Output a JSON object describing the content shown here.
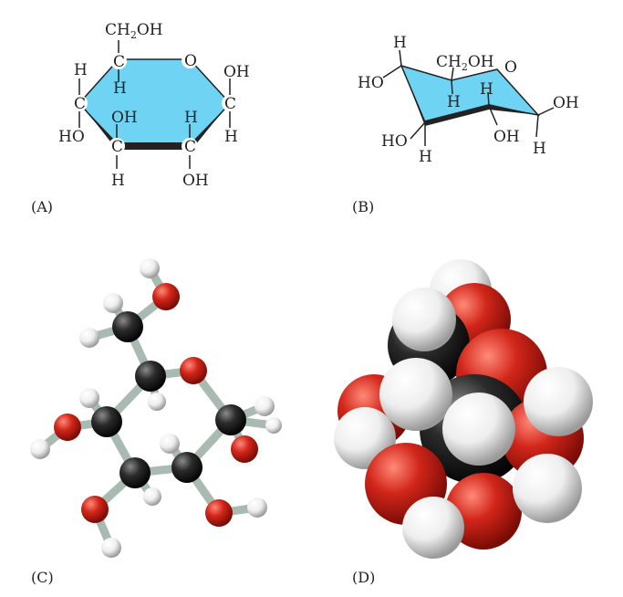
{
  "colors": {
    "ring_fill": "#6fd3f3",
    "ring_edge": "#222222",
    "bond": "#222222",
    "carbon": "#2b2b2b",
    "oxygen": "#d2261a",
    "hydrogen": "#f2f2f2",
    "stick": "#b9c9c1"
  },
  "icons": [
    "haworth-projection",
    "chair-conformation",
    "ball-and-stick-model",
    "space-filling-model"
  ],
  "panels": {
    "a": {
      "caption": "(A)",
      "ch2oh_main": "CH",
      "ch2oh_sub": "2",
      "ch2oh_tail": "OH",
      "ring_o": "O",
      "c": "C",
      "h": "H",
      "oh": "OH",
      "ho": "HO"
    },
    "b": {
      "caption": "(B)",
      "ch2oh_main": "CH",
      "ch2oh_sub": "2",
      "ch2oh_tail": "OH",
      "ring_o": "O",
      "h": "H",
      "oh": "OH",
      "ho": "HO"
    },
    "c": {
      "caption": "(C)"
    },
    "d": {
      "caption": "(D)"
    }
  }
}
